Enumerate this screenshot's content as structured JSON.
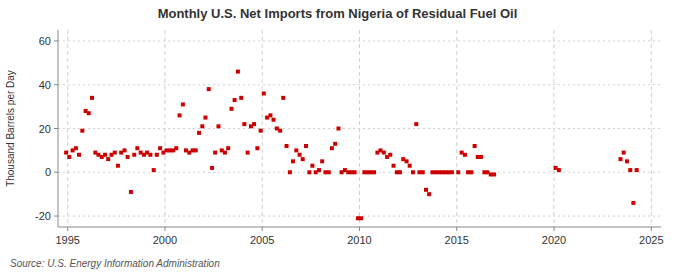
{
  "chart_data": {
    "type": "scatter",
    "title": "Monthly U.S. Net Imports from Nigeria of Residual Fuel Oil",
    "y_label": "Thousand Barrels per Day",
    "source": "Source: U.S. Energy Information Administration",
    "xlim": [
      1994.5,
      2025.5
    ],
    "ylim": [
      -25,
      65
    ],
    "xticks": [
      1995,
      2000,
      2005,
      2010,
      2015,
      2020,
      2025
    ],
    "yticks": [
      -20,
      0,
      20,
      40,
      60
    ],
    "grid": true,
    "color": "#cc0000",
    "marker": "square",
    "x": [
      1994.92,
      1995.08,
      1995.25,
      1995.42,
      1995.58,
      1995.75,
      1995.92,
      1996.08,
      1996.25,
      1996.42,
      1996.58,
      1996.75,
      1996.92,
      1997.08,
      1997.25,
      1997.42,
      1997.58,
      1997.75,
      1997.92,
      1998.08,
      1998.25,
      1998.42,
      1998.58,
      1998.75,
      1998.92,
      1999.08,
      1999.25,
      1999.42,
      1999.58,
      1999.75,
      1999.92,
      2000.08,
      2000.25,
      2000.42,
      2000.58,
      2000.75,
      2000.92,
      2001.08,
      2001.25,
      2001.42,
      2001.58,
      2001.75,
      2001.92,
      2002.08,
      2002.25,
      2002.42,
      2002.58,
      2002.75,
      2002.92,
      2003.08,
      2003.25,
      2003.42,
      2003.58,
      2003.75,
      2003.92,
      2004.08,
      2004.25,
      2004.42,
      2004.58,
      2004.75,
      2004.92,
      2005.08,
      2005.25,
      2005.42,
      2005.58,
      2005.75,
      2005.92,
      2006.08,
      2006.25,
      2006.42,
      2006.58,
      2006.75,
      2006.92,
      2007.08,
      2007.25,
      2007.42,
      2007.58,
      2007.75,
      2007.92,
      2008.08,
      2008.25,
      2008.42,
      2008.58,
      2008.75,
      2008.92,
      2009.08,
      2009.25,
      2009.42,
      2009.58,
      2009.75,
      2009.92,
      2010.08,
      2010.25,
      2010.42,
      2010.58,
      2010.75,
      2010.92,
      2011.08,
      2011.25,
      2011.42,
      2011.58,
      2011.75,
      2011.92,
      2012.08,
      2012.25,
      2012.42,
      2012.58,
      2012.75,
      2012.92,
      2013.08,
      2013.25,
      2013.42,
      2013.58,
      2013.75,
      2013.92,
      2014.08,
      2014.25,
      2014.42,
      2014.58,
      2014.75,
      2015.08,
      2015.25,
      2015.42,
      2015.58,
      2015.75,
      2015.92,
      2016.08,
      2016.25,
      2016.42,
      2016.58,
      2016.75,
      2016.92,
      2020.08,
      2020.25,
      2023.42,
      2023.58,
      2023.75,
      2023.92,
      2024.08,
      2024.25
    ],
    "values": [
      9,
      7,
      10,
      11,
      8,
      19,
      28,
      27,
      34,
      9,
      8,
      7,
      8,
      6,
      8,
      9,
      3,
      9,
      10,
      7,
      -9,
      8,
      11,
      9,
      8,
      9,
      8,
      1,
      8,
      11,
      9,
      10,
      10,
      10,
      11,
      26,
      31,
      10,
      9,
      10,
      10,
      18,
      21,
      25,
      38,
      2,
      9,
      21,
      10,
      9,
      11,
      29,
      33,
      46,
      34,
      22,
      9,
      21,
      22,
      11,
      19,
      36,
      25,
      26,
      24,
      20,
      19,
      34,
      12,
      0,
      5,
      10,
      8,
      6,
      12,
      0,
      3,
      0,
      1,
      5,
      0,
      0,
      11,
      13,
      20,
      0,
      1,
      0,
      0,
      0,
      -21,
      -21,
      0,
      0,
      0,
      0,
      9,
      10,
      9,
      7,
      8,
      3,
      0,
      0,
      6,
      5,
      3,
      0,
      22,
      0,
      0,
      -8,
      -10,
      0,
      0,
      0,
      0,
      0,
      0,
      0,
      0,
      9,
      8,
      0,
      0,
      12,
      7,
      7,
      0,
      0,
      -1,
      -1,
      2,
      1,
      6,
      9,
      5,
      1,
      -14,
      1
    ]
  }
}
